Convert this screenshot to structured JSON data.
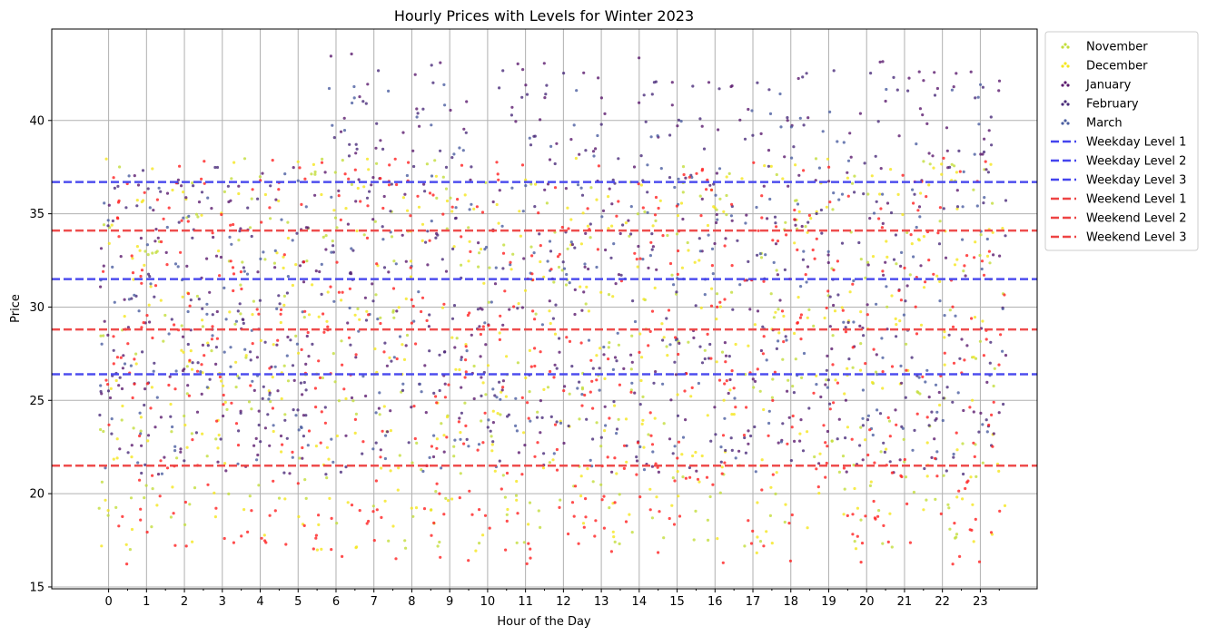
{
  "chart_data": {
    "type": "scatter",
    "title": "Hourly Prices with Levels for Winter 2023",
    "xlabel": "Hour of the Day",
    "ylabel": "Price",
    "xlim": [
      -1.5,
      24.5
    ],
    "ylim": [
      14.9,
      44.9
    ],
    "xticks": [
      0,
      1,
      2,
      3,
      4,
      5,
      6,
      7,
      8,
      9,
      10,
      11,
      12,
      13,
      14,
      15,
      16,
      17,
      18,
      19,
      20,
      21,
      22,
      23
    ],
    "yticks": [
      15,
      20,
      25,
      30,
      35,
      40
    ],
    "grid": true,
    "legend_position": "outside-top-right",
    "series": [
      {
        "name": "November",
        "color": "#c3dd3c",
        "marker": "dot",
        "points_per_hour": 16,
        "price_band": [
          17,
          38
        ]
      },
      {
        "name": "December",
        "color": "#f5e61e",
        "marker": "dot",
        "points_per_hour": 18,
        "price_band": [
          16.8,
          38
        ]
      },
      {
        "name": "January",
        "color": "#5b1a6e",
        "marker": "dot",
        "points_per_hour": 18,
        "price_band": [
          21,
          43.6
        ]
      },
      {
        "name": "February",
        "color": "#4a2c7a",
        "marker": "dot",
        "points_per_hour": 16,
        "price_band": [
          21,
          43
        ]
      },
      {
        "name": "March",
        "color": "#4b5ea0",
        "marker": "dot",
        "points_per_hour": 14,
        "price_band": [
          21,
          42
        ]
      }
    ],
    "weekend_points": {
      "color": "#ff2020",
      "points_per_hour": 26,
      "price_band": [
        16.2,
        38
      ]
    },
    "levels": [
      {
        "name": "Weekday Level 1",
        "value": 36.7,
        "color": "#4444ee"
      },
      {
        "name": "Weekday Level 2",
        "value": 31.5,
        "color": "#4444ee"
      },
      {
        "name": "Weekday Level 3",
        "value": 26.4,
        "color": "#4444ee"
      },
      {
        "name": "Weekend Level 1",
        "value": 34.1,
        "color": "#ee4444"
      },
      {
        "name": "Weekend Level 2",
        "value": 28.8,
        "color": "#ee4444"
      },
      {
        "name": "Weekend Level 3",
        "value": 21.5,
        "color": "#ee4444"
      }
    ]
  }
}
